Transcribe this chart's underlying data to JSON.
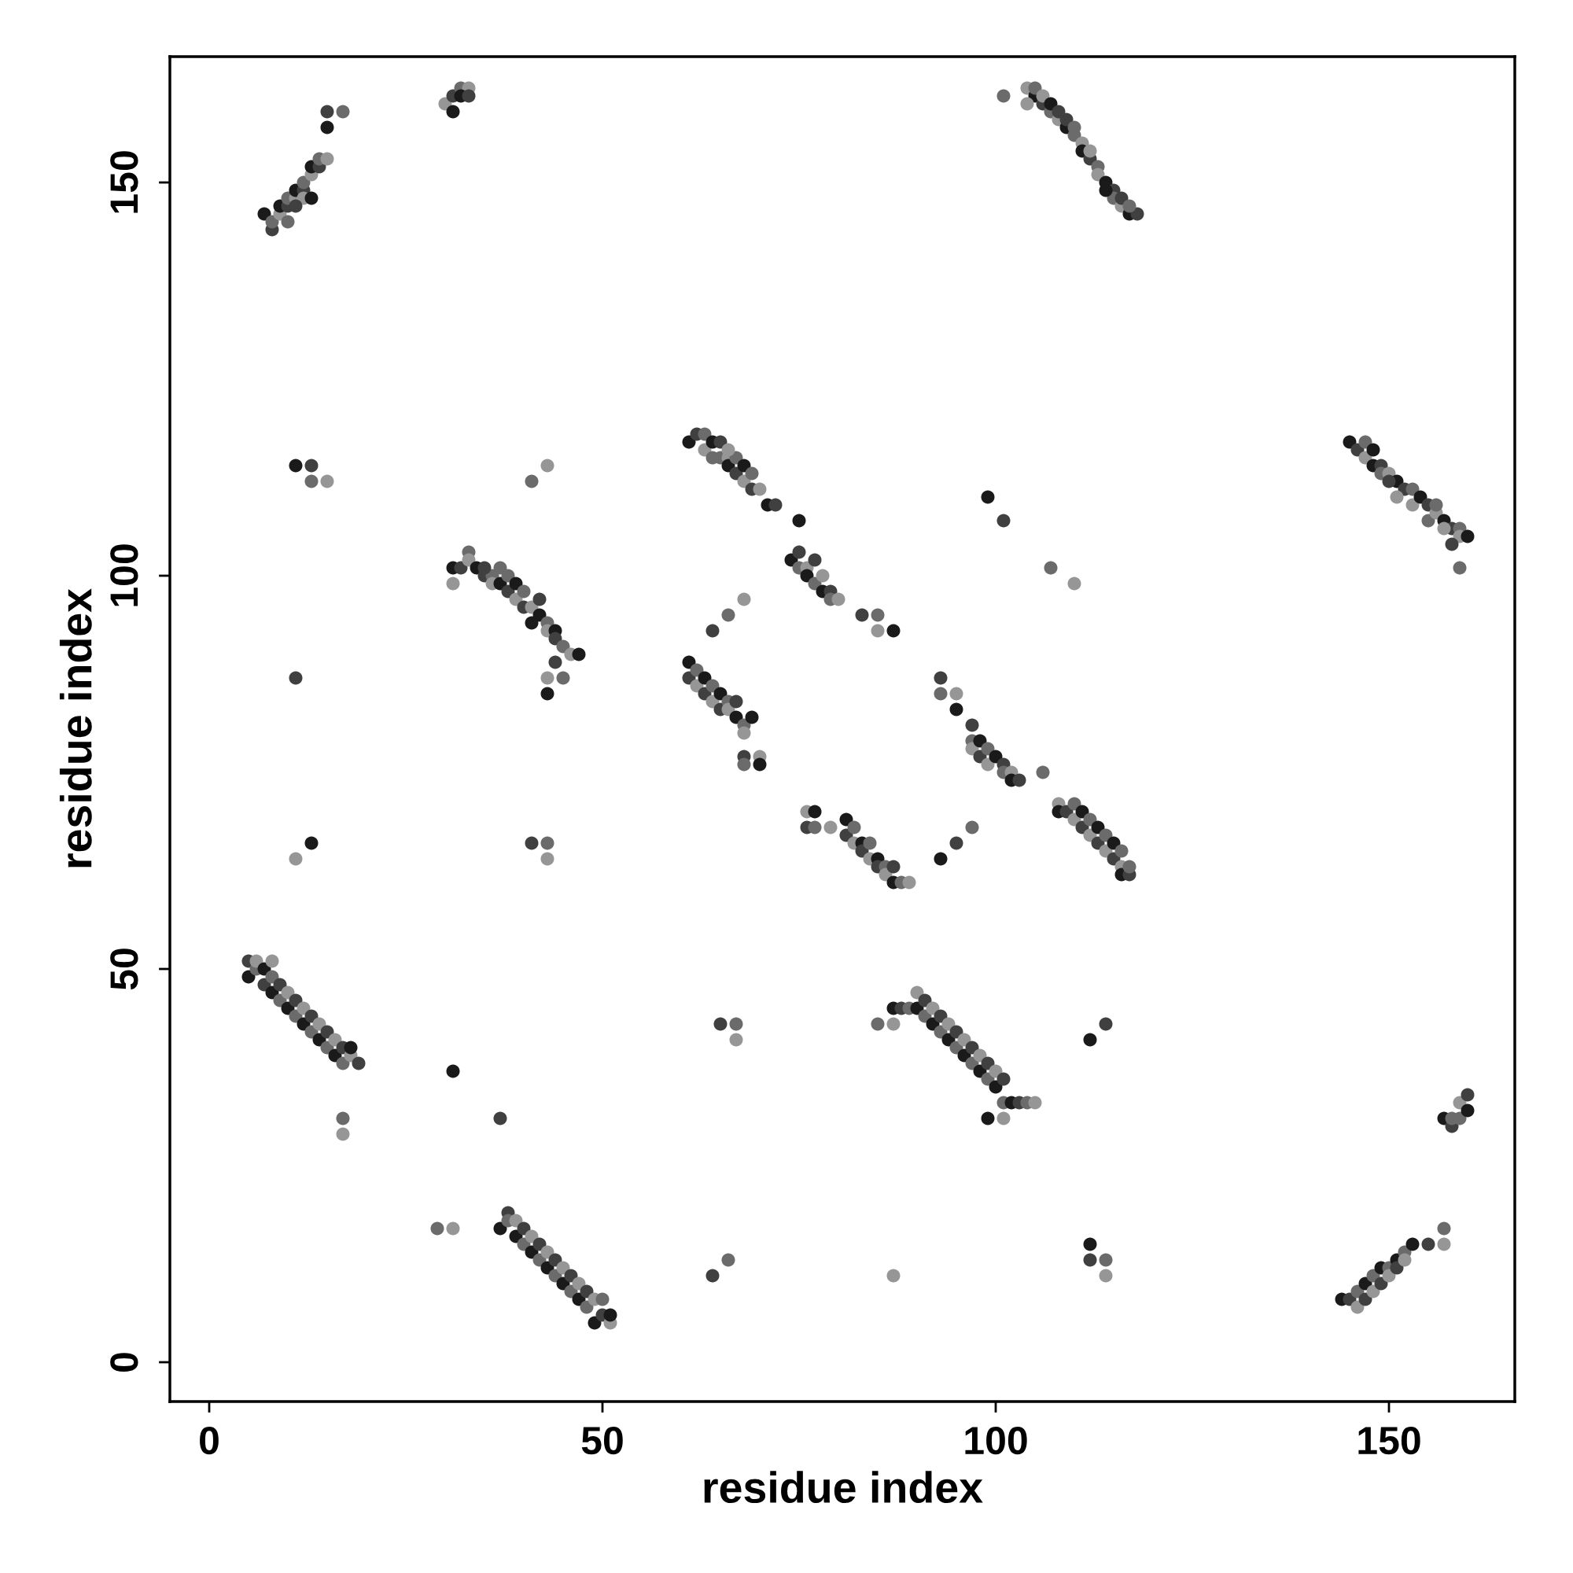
{
  "chart_data": {
    "type": "scatter",
    "xlabel": "residue index",
    "ylabel": "residue index",
    "xlim": [
      -5,
      166
    ],
    "ylim": [
      -5,
      166
    ],
    "xticks": [
      0,
      50,
      100,
      150
    ],
    "yticks": [
      0,
      50,
      100,
      150
    ],
    "marker": "circle",
    "grid": false,
    "series": [
      {
        "x": [
          7,
          8,
          8,
          9,
          9,
          10,
          10,
          11,
          11,
          12,
          12,
          13,
          13,
          14,
          14,
          15,
          15,
          15,
          17,
          12,
          13,
          11,
          10,
          30,
          31,
          31,
          32,
          33,
          32,
          33,
          101,
          104,
          105,
          106,
          107,
          108,
          109,
          109,
          110,
          111,
          111,
          112,
          113,
          113,
          114,
          115,
          115,
          116,
          117,
          118,
          105,
          106,
          107,
          108,
          110,
          112,
          114,
          116,
          117,
          104,
          61,
          62,
          63,
          63,
          64,
          65,
          65,
          66,
          66,
          67,
          67,
          68,
          68,
          69,
          69,
          70,
          71,
          72,
          64,
          66,
          145,
          146,
          147,
          147,
          148,
          149,
          149,
          150,
          151,
          152,
          153,
          153,
          154,
          155,
          155,
          156,
          157,
          158,
          159,
          159,
          160,
          158,
          159,
          151,
          148,
          150,
          156,
          157,
          31,
          32,
          33,
          33,
          34,
          35,
          36,
          36,
          37,
          38,
          38,
          39,
          39,
          40,
          40,
          41,
          42,
          42,
          43,
          43,
          44,
          44,
          45,
          46,
          47,
          35,
          37,
          31,
          41,
          44,
          45,
          43,
          43,
          11,
          41,
          43,
          11,
          13,
          13,
          15,
          74,
          75,
          75,
          76,
          76,
          77,
          77,
          78,
          78,
          79,
          79,
          80,
          75,
          83,
          85,
          85,
          87,
          64,
          66,
          68,
          99,
          101,
          107,
          110,
          61,
          61,
          62,
          62,
          63,
          63,
          64,
          64,
          65,
          65,
          66,
          66,
          67,
          67,
          68,
          68,
          69,
          68,
          68,
          70,
          70,
          93,
          93,
          95,
          95,
          97,
          97,
          97,
          98,
          98,
          99,
          99,
          100,
          101,
          101,
          102,
          102,
          103,
          106,
          76,
          77,
          76,
          77,
          79,
          81,
          81,
          82,
          82,
          83,
          83,
          84,
          84,
          85,
          85,
          86,
          86,
          87,
          87,
          88,
          89,
          93,
          95,
          97,
          108,
          108,
          109,
          110,
          110,
          111,
          111,
          112,
          112,
          113,
          113,
          114,
          114,
          115,
          115,
          116,
          116,
          116,
          117,
          117,
          11,
          13,
          41,
          43,
          43,
          5,
          5,
          6,
          6,
          7,
          7,
          8,
          8,
          8,
          9,
          9,
          10,
          10,
          11,
          11,
          12,
          12,
          13,
          13,
          14,
          14,
          15,
          15,
          16,
          16,
          17,
          17,
          18,
          18,
          19,
          17,
          17,
          31,
          37,
          85,
          87,
          87,
          88,
          89,
          90,
          90,
          91,
          91,
          92,
          92,
          93,
          93,
          94,
          94,
          95,
          95,
          96,
          96,
          97,
          97,
          98,
          98,
          99,
          99,
          100,
          100,
          101,
          101,
          101,
          102,
          103,
          104,
          105,
          99,
          65,
          67,
          67,
          112,
          114,
          29,
          31,
          37,
          38,
          38,
          39,
          39,
          40,
          40,
          41,
          41,
          42,
          42,
          43,
          43,
          44,
          44,
          45,
          45,
          46,
          46,
          47,
          47,
          48,
          48,
          49,
          49,
          50,
          50,
          51,
          51,
          64,
          66,
          87,
          112,
          112,
          114,
          114,
          144,
          145,
          146,
          146,
          147,
          147,
          148,
          148,
          149,
          149,
          150,
          150,
          151,
          151,
          152,
          152,
          153,
          155,
          157,
          157,
          157,
          158,
          159,
          159,
          160,
          160,
          158
        ],
        "values": [
          146,
          144,
          145,
          146,
          147,
          147,
          148,
          148,
          149,
          149,
          150,
          151,
          152,
          152,
          153,
          153,
          157,
          159,
          159,
          148,
          148,
          147,
          145,
          160,
          159,
          161,
          162,
          162,
          161,
          161,
          161,
          162,
          161,
          160,
          159,
          158,
          157,
          158,
          156,
          155,
          154,
          153,
          152,
          151,
          150,
          149,
          148,
          147,
          146,
          146,
          162,
          161,
          160,
          159,
          157,
          154,
          149,
          148,
          147,
          160,
          117,
          118,
          118,
          116,
          117,
          117,
          115,
          115,
          114,
          113,
          115,
          112,
          114,
          111,
          113,
          111,
          109,
          109,
          115,
          116,
          117,
          116,
          117,
          115,
          114,
          114,
          113,
          113,
          112,
          111,
          111,
          109,
          110,
          109,
          107,
          108,
          107,
          106,
          106,
          105,
          105,
          104,
          101,
          110,
          116,
          112,
          109,
          106,
          101,
          101,
          103,
          102,
          101,
          100,
          100,
          99,
          99,
          98,
          100,
          97,
          99,
          96,
          98,
          96,
          95,
          97,
          94,
          93,
          93,
          92,
          91,
          90,
          90,
          101,
          101,
          99,
          94,
          89,
          87,
          87,
          85,
          87,
          112,
          114,
          114,
          114,
          112,
          112,
          102,
          103,
          101,
          101,
          100,
          102,
          99,
          100,
          98,
          98,
          97,
          97,
          107,
          95,
          95,
          93,
          93,
          93,
          95,
          97,
          110,
          107,
          101,
          99,
          89,
          87,
          88,
          86,
          87,
          85,
          86,
          84,
          85,
          83,
          84,
          83,
          82,
          84,
          81,
          80,
          82,
          77,
          76,
          77,
          76,
          87,
          85,
          85,
          83,
          81,
          79,
          78,
          79,
          77,
          78,
          76,
          77,
          76,
          75,
          75,
          74,
          74,
          75,
          70,
          70,
          68,
          68,
          68,
          69,
          67,
          68,
          66,
          66,
          65,
          66,
          64,
          64,
          63,
          63,
          62,
          61,
          63,
          61,
          61,
          64,
          66,
          68,
          71,
          70,
          70,
          71,
          69,
          70,
          68,
          69,
          67,
          68,
          66,
          67,
          65,
          66,
          64,
          65,
          63,
          62,
          62,
          63,
          64,
          66,
          66,
          66,
          64,
          49,
          51,
          50,
          51,
          50,
          48,
          49,
          51,
          47,
          48,
          46,
          47,
          45,
          46,
          44,
          45,
          43,
          44,
          42,
          43,
          41,
          42,
          40,
          41,
          39,
          40,
          38,
          39,
          40,
          38,
          31,
          29,
          37,
          31,
          43,
          43,
          45,
          45,
          45,
          47,
          45,
          46,
          44,
          45,
          43,
          44,
          42,
          43,
          41,
          42,
          40,
          41,
          39,
          40,
          38,
          39,
          37,
          38,
          36,
          37,
          35,
          36,
          33,
          31,
          33,
          33,
          33,
          33,
          31,
          43,
          43,
          41,
          41,
          43,
          17,
          17,
          17,
          19,
          18,
          18,
          16,
          17,
          15,
          16,
          14,
          15,
          13,
          14,
          12,
          13,
          11,
          12,
          10,
          11,
          9,
          10,
          8,
          9,
          7,
          8,
          5,
          6,
          8,
          5,
          6,
          11,
          13,
          11,
          15,
          13,
          13,
          11,
          8,
          8,
          9,
          7,
          10,
          8,
          11,
          9,
          12,
          10,
          12,
          11,
          13,
          12,
          14,
          13,
          15,
          15,
          17,
          15,
          31,
          30,
          31,
          33,
          32,
          34,
          31
        ],
        "colors": [
          "#1a1a1a",
          "#404040",
          "#6b6b6b",
          "#969696",
          "#1a1a1a",
          "#404040",
          "#6b6b6b",
          "#969696",
          "#1a1a1a",
          "#404040",
          "#6b6b6b",
          "#969696",
          "#1a1a1a",
          "#404040",
          "#6b6b6b",
          "#969696",
          "#1a1a1a",
          "#404040",
          "#6b6b6b",
          "#969696",
          "#1a1a1a",
          "#404040",
          "#6b6b6b",
          "#969696",
          "#1a1a1a",
          "#404040",
          "#6b6b6b",
          "#969696",
          "#1a1a1a",
          "#404040",
          "#6b6b6b",
          "#969696",
          "#1a1a1a",
          "#404040",
          "#6b6b6b",
          "#969696",
          "#1a1a1a",
          "#404040",
          "#6b6b6b",
          "#969696",
          "#1a1a1a",
          "#404040",
          "#6b6b6b",
          "#969696",
          "#1a1a1a",
          "#404040",
          "#6b6b6b",
          "#969696",
          "#1a1a1a",
          "#404040",
          "#6b6b6b",
          "#969696",
          "#1a1a1a",
          "#404040",
          "#6b6b6b",
          "#969696",
          "#1a1a1a",
          "#404040",
          "#6b6b6b",
          "#969696",
          "#1a1a1a",
          "#404040",
          "#6b6b6b",
          "#969696",
          "#1a1a1a",
          "#404040",
          "#6b6b6b",
          "#969696",
          "#1a1a1a",
          "#404040",
          "#6b6b6b",
          "#969696",
          "#1a1a1a",
          "#404040",
          "#6b6b6b",
          "#969696",
          "#1a1a1a",
          "#404040",
          "#6b6b6b",
          "#969696",
          "#1a1a1a",
          "#404040",
          "#6b6b6b",
          "#969696",
          "#1a1a1a",
          "#404040",
          "#6b6b6b",
          "#969696",
          "#1a1a1a",
          "#404040",
          "#6b6b6b",
          "#969696",
          "#1a1a1a",
          "#404040",
          "#6b6b6b",
          "#969696",
          "#1a1a1a",
          "#404040",
          "#6b6b6b",
          "#969696",
          "#1a1a1a",
          "#404040",
          "#6b6b6b",
          "#969696",
          "#1a1a1a",
          "#404040",
          "#6b6b6b",
          "#969696",
          "#1a1a1a",
          "#404040",
          "#6b6b6b",
          "#969696",
          "#1a1a1a",
          "#404040",
          "#6b6b6b",
          "#969696",
          "#1a1a1a",
          "#404040",
          "#6b6b6b",
          "#969696",
          "#1a1a1a",
          "#404040",
          "#6b6b6b",
          "#969696",
          "#1a1a1a",
          "#404040",
          "#6b6b6b",
          "#969696",
          "#1a1a1a",
          "#404040",
          "#6b6b6b",
          "#969696",
          "#1a1a1a",
          "#404040",
          "#6b6b6b",
          "#969696",
          "#1a1a1a",
          "#404040",
          "#6b6b6b",
          "#969696",
          "#1a1a1a",
          "#404040",
          "#6b6b6b",
          "#969696",
          "#1a1a1a",
          "#404040",
          "#6b6b6b",
          "#969696",
          "#1a1a1a",
          "#404040",
          "#6b6b6b",
          "#969696",
          "#1a1a1a",
          "#404040",
          "#6b6b6b",
          "#969696",
          "#1a1a1a",
          "#404040",
          "#6b6b6b",
          "#969696",
          "#1a1a1a",
          "#404040",
          "#6b6b6b",
          "#969696",
          "#1a1a1a",
          "#404040",
          "#6b6b6b",
          "#969696",
          "#1a1a1a",
          "#404040",
          "#6b6b6b",
          "#969696",
          "#1a1a1a",
          "#404040",
          "#6b6b6b",
          "#969696",
          "#1a1a1a",
          "#404040",
          "#6b6b6b",
          "#969696",
          "#1a1a1a",
          "#404040",
          "#6b6b6b",
          "#969696",
          "#1a1a1a",
          "#404040",
          "#6b6b6b",
          "#969696",
          "#1a1a1a",
          "#404040",
          "#6b6b6b",
          "#969696",
          "#1a1a1a",
          "#404040",
          "#6b6b6b",
          "#969696",
          "#1a1a1a",
          "#404040",
          "#6b6b6b",
          "#969696",
          "#1a1a1a",
          "#404040",
          "#6b6b6b",
          "#969696",
          "#1a1a1a",
          "#404040",
          "#6b6b6b",
          "#969696",
          "#1a1a1a",
          "#404040",
          "#6b6b6b",
          "#969696",
          "#1a1a1a",
          "#404040",
          "#6b6b6b",
          "#969696",
          "#1a1a1a",
          "#404040",
          "#6b6b6b",
          "#969696",
          "#1a1a1a",
          "#404040",
          "#6b6b6b",
          "#969696",
          "#1a1a1a",
          "#404040",
          "#6b6b6b",
          "#969696",
          "#1a1a1a",
          "#404040",
          "#6b6b6b",
          "#969696",
          "#1a1a1a",
          "#404040",
          "#6b6b6b",
          "#969696",
          "#1a1a1a",
          "#404040",
          "#6b6b6b",
          "#969696",
          "#1a1a1a",
          "#404040",
          "#6b6b6b",
          "#969696",
          "#1a1a1a",
          "#404040",
          "#6b6b6b",
          "#969696",
          "#1a1a1a",
          "#404040",
          "#6b6b6b",
          "#969696",
          "#1a1a1a",
          "#404040",
          "#6b6b6b",
          "#969696",
          "#1a1a1a",
          "#404040",
          "#6b6b6b",
          "#969696",
          "#1a1a1a",
          "#404040",
          "#6b6b6b",
          "#969696",
          "#1a1a1a",
          "#404040",
          "#6b6b6b",
          "#969696",
          "#1a1a1a",
          "#404040",
          "#6b6b6b",
          "#969696",
          "#1a1a1a",
          "#404040",
          "#6b6b6b",
          "#969696",
          "#1a1a1a",
          "#404040",
          "#6b6b6b",
          "#969696",
          "#1a1a1a",
          "#404040",
          "#6b6b6b",
          "#969696",
          "#1a1a1a",
          "#404040",
          "#6b6b6b",
          "#969696",
          "#1a1a1a",
          "#404040",
          "#6b6b6b",
          "#969696",
          "#1a1a1a",
          "#404040",
          "#6b6b6b",
          "#969696",
          "#1a1a1a",
          "#404040",
          "#6b6b6b",
          "#969696",
          "#1a1a1a",
          "#404040",
          "#6b6b6b",
          "#969696",
          "#1a1a1a",
          "#404040",
          "#6b6b6b",
          "#969696",
          "#1a1a1a",
          "#404040",
          "#6b6b6b",
          "#969696",
          "#1a1a1a",
          "#404040",
          "#6b6b6b",
          "#969696",
          "#1a1a1a",
          "#404040",
          "#6b6b6b",
          "#969696",
          "#1a1a1a",
          "#404040",
          "#6b6b6b",
          "#969696",
          "#1a1a1a",
          "#404040",
          "#6b6b6b",
          "#969696",
          "#1a1a1a",
          "#404040",
          "#6b6b6b",
          "#969696",
          "#1a1a1a",
          "#404040",
          "#6b6b6b",
          "#969696",
          "#1a1a1a",
          "#404040",
          "#6b6b6b",
          "#969696",
          "#1a1a1a",
          "#404040",
          "#6b6b6b",
          "#969696",
          "#1a1a1a",
          "#404040",
          "#6b6b6b",
          "#969696",
          "#1a1a1a",
          "#404040",
          "#6b6b6b",
          "#969696",
          "#1a1a1a",
          "#404040",
          "#6b6b6b",
          "#969696",
          "#1a1a1a",
          "#404040",
          "#6b6b6b",
          "#969696",
          "#1a1a1a",
          "#404040",
          "#6b6b6b",
          "#969696",
          "#1a1a1a",
          "#404040",
          "#6b6b6b",
          "#969696",
          "#1a1a1a",
          "#404040",
          "#6b6b6b",
          "#969696",
          "#1a1a1a",
          "#404040",
          "#6b6b6b",
          "#969696",
          "#1a1a1a",
          "#404040",
          "#6b6b6b",
          "#969696",
          "#1a1a1a",
          "#404040",
          "#6b6b6b",
          "#969696",
          "#1a1a1a",
          "#404040",
          "#6b6b6b",
          "#969696",
          "#1a1a1a",
          "#404040",
          "#6b6b6b",
          "#969696",
          "#1a1a1a",
          "#404040",
          "#6b6b6b",
          "#969696",
          "#1a1a1a",
          "#404040",
          "#6b6b6b"
        ]
      }
    ]
  }
}
